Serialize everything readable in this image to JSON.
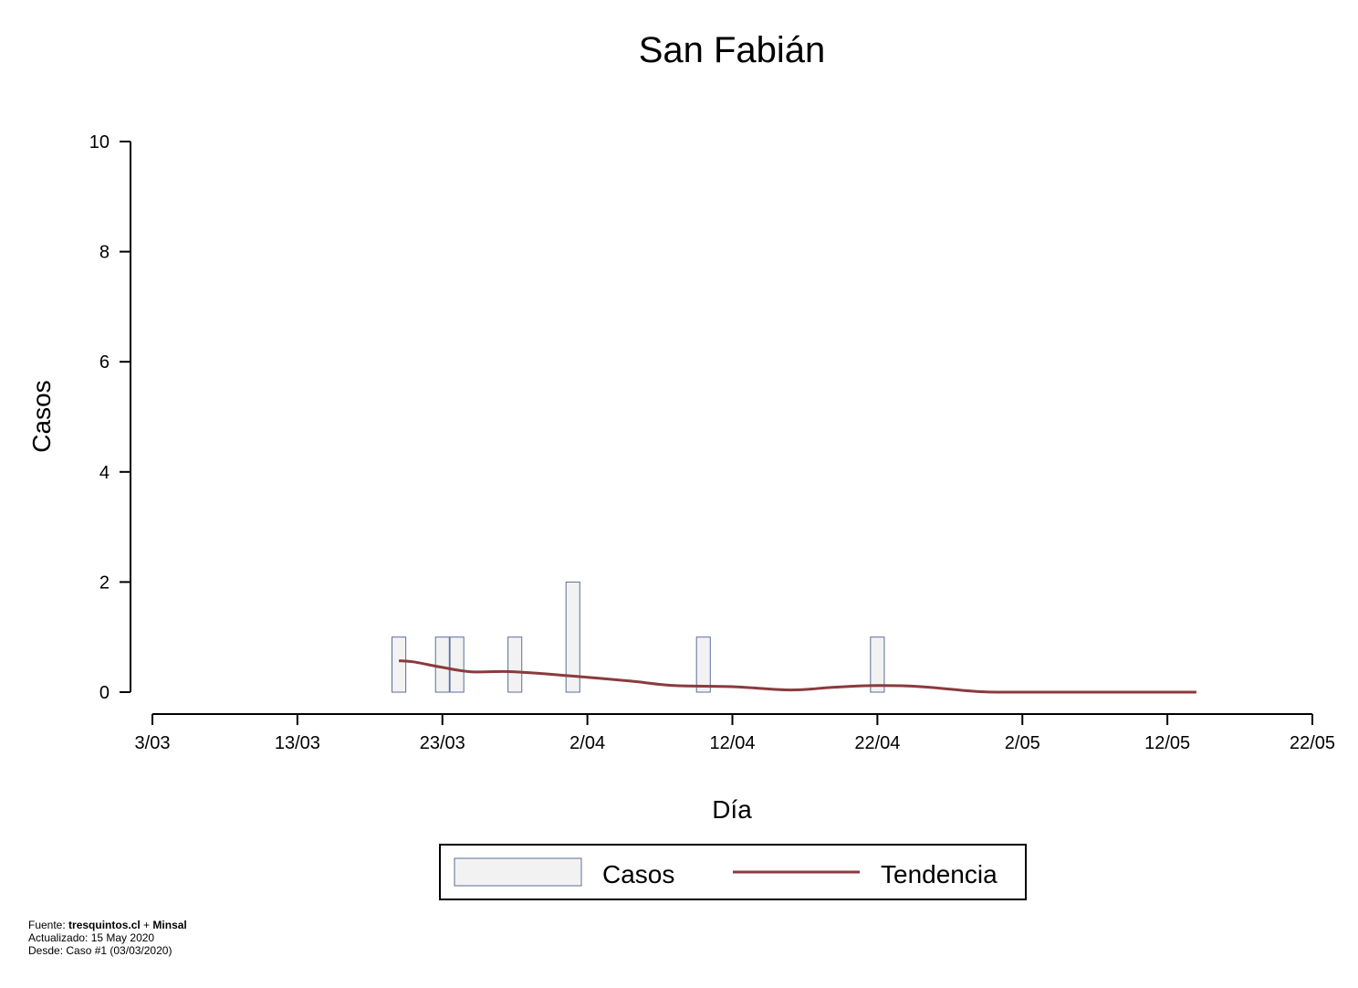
{
  "chart_data": {
    "type": "bar",
    "title": "San Fabián",
    "xlabel": "Día",
    "ylabel": "Casos",
    "ylim": [
      0,
      10
    ],
    "yticks": [
      0,
      2,
      4,
      6,
      8,
      10
    ],
    "xlim": [
      "2020-03-03",
      "2020-05-22"
    ],
    "xticks": [
      {
        "date": "2020-03-03",
        "label": "3/03"
      },
      {
        "date": "2020-03-13",
        "label": "13/03"
      },
      {
        "date": "2020-03-23",
        "label": "23/03"
      },
      {
        "date": "2020-04-02",
        "label": "2/04"
      },
      {
        "date": "2020-04-12",
        "label": "12/04"
      },
      {
        "date": "2020-04-22",
        "label": "22/04"
      },
      {
        "date": "2020-05-02",
        "label": "2/05"
      },
      {
        "date": "2020-05-12",
        "label": "12/05"
      },
      {
        "date": "2020-05-22",
        "label": "22/05"
      }
    ],
    "series": [
      {
        "name": "Casos",
        "kind": "bar",
        "fill": "#f2f2f2",
        "stroke": "#5a6d9a",
        "points": [
          {
            "date": "2020-03-20",
            "value": 1
          },
          {
            "date": "2020-03-23",
            "value": 1
          },
          {
            "date": "2020-03-24",
            "value": 1
          },
          {
            "date": "2020-03-28",
            "value": 1
          },
          {
            "date": "2020-04-01",
            "value": 2
          },
          {
            "date": "2020-04-10",
            "value": 1
          },
          {
            "date": "2020-04-22",
            "value": 1
          }
        ]
      },
      {
        "name": "Tendencia",
        "kind": "line",
        "color": "#8b3a3e",
        "points": [
          {
            "date": "2020-03-20",
            "value": 0.57
          },
          {
            "date": "2020-03-21",
            "value": 0.55
          },
          {
            "date": "2020-03-23",
            "value": 0.45
          },
          {
            "date": "2020-03-25",
            "value": 0.37
          },
          {
            "date": "2020-03-28",
            "value": 0.37
          },
          {
            "date": "2020-04-02",
            "value": 0.27
          },
          {
            "date": "2020-04-05",
            "value": 0.2
          },
          {
            "date": "2020-04-08",
            "value": 0.12
          },
          {
            "date": "2020-04-12",
            "value": 0.1
          },
          {
            "date": "2020-04-16",
            "value": 0.04
          },
          {
            "date": "2020-04-19",
            "value": 0.09
          },
          {
            "date": "2020-04-22",
            "value": 0.12
          },
          {
            "date": "2020-04-25",
            "value": 0.1
          },
          {
            "date": "2020-04-29",
            "value": 0.01
          },
          {
            "date": "2020-05-02",
            "value": 0.0
          },
          {
            "date": "2020-05-14",
            "value": 0.0
          }
        ]
      }
    ],
    "legend": {
      "position": "bottom-center",
      "entries": [
        "Casos",
        "Tendencia"
      ]
    }
  },
  "footer": {
    "source_prefix": "Fuente: ",
    "source_a": "tresquintos.cl",
    "source_join": " + ",
    "source_b": "Minsal",
    "updated": "Actualizado: 15 May 2020",
    "since": "Desde: Caso #1  (03/03/2020)"
  }
}
